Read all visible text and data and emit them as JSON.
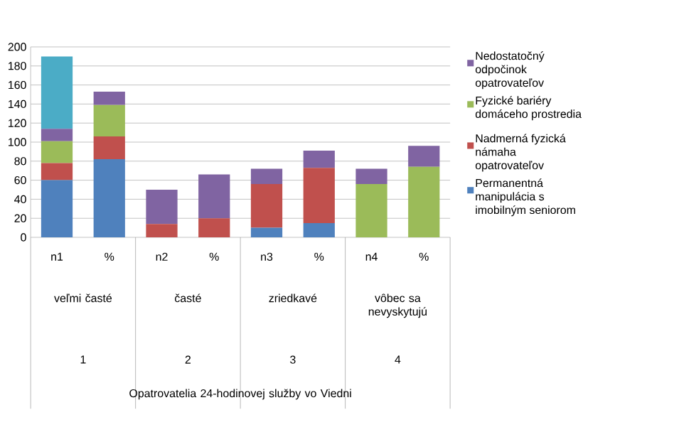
{
  "chart_data": {
    "type": "bar",
    "stacked": true,
    "categories": [
      "n1",
      "%",
      "n2",
      "%",
      "n3",
      "%",
      "n4",
      "%"
    ],
    "annotations": [
      "veľmi časté",
      "časté",
      "zriedkavé",
      "vôbec sa nevyskytujú",
      "1",
      "2",
      "3",
      "4",
      "Opatrovatelia 24-hodinovej služby vo Viedni"
    ],
    "series": [
      {
        "name": "Permanentná manipulácia s imobilným seniorom",
        "color": "#4f81bd",
        "values": [
          60,
          82,
          0,
          0,
          10,
          15,
          0,
          0
        ]
      },
      {
        "name": "Nadmerná fyzická námaha opatrovateľov",
        "color": "#c0504d",
        "values": [
          18,
          24,
          14,
          20,
          46,
          58,
          0,
          0
        ]
      },
      {
        "name": "Fyzické bariéry domáceho prostredia",
        "color": "#9bbb59",
        "values": [
          23,
          33,
          0,
          0,
          0,
          0,
          56,
          74
        ]
      },
      {
        "name": "Nedostatočný odpočinok opatrovateľov",
        "color": "#8064a2",
        "values": [
          13,
          14,
          36,
          46,
          16,
          18,
          16,
          22
        ]
      },
      {
        "color": "#4bacc6",
        "values": [
          76,
          0,
          0,
          0,
          0,
          0,
          0,
          0
        ]
      }
    ],
    "ylim": [
      0,
      200
    ],
    "yticks": [
      0,
      20,
      40,
      60,
      80,
      100,
      120,
      140,
      160,
      180,
      200
    ],
    "grid": "y",
    "legend": "right"
  }
}
